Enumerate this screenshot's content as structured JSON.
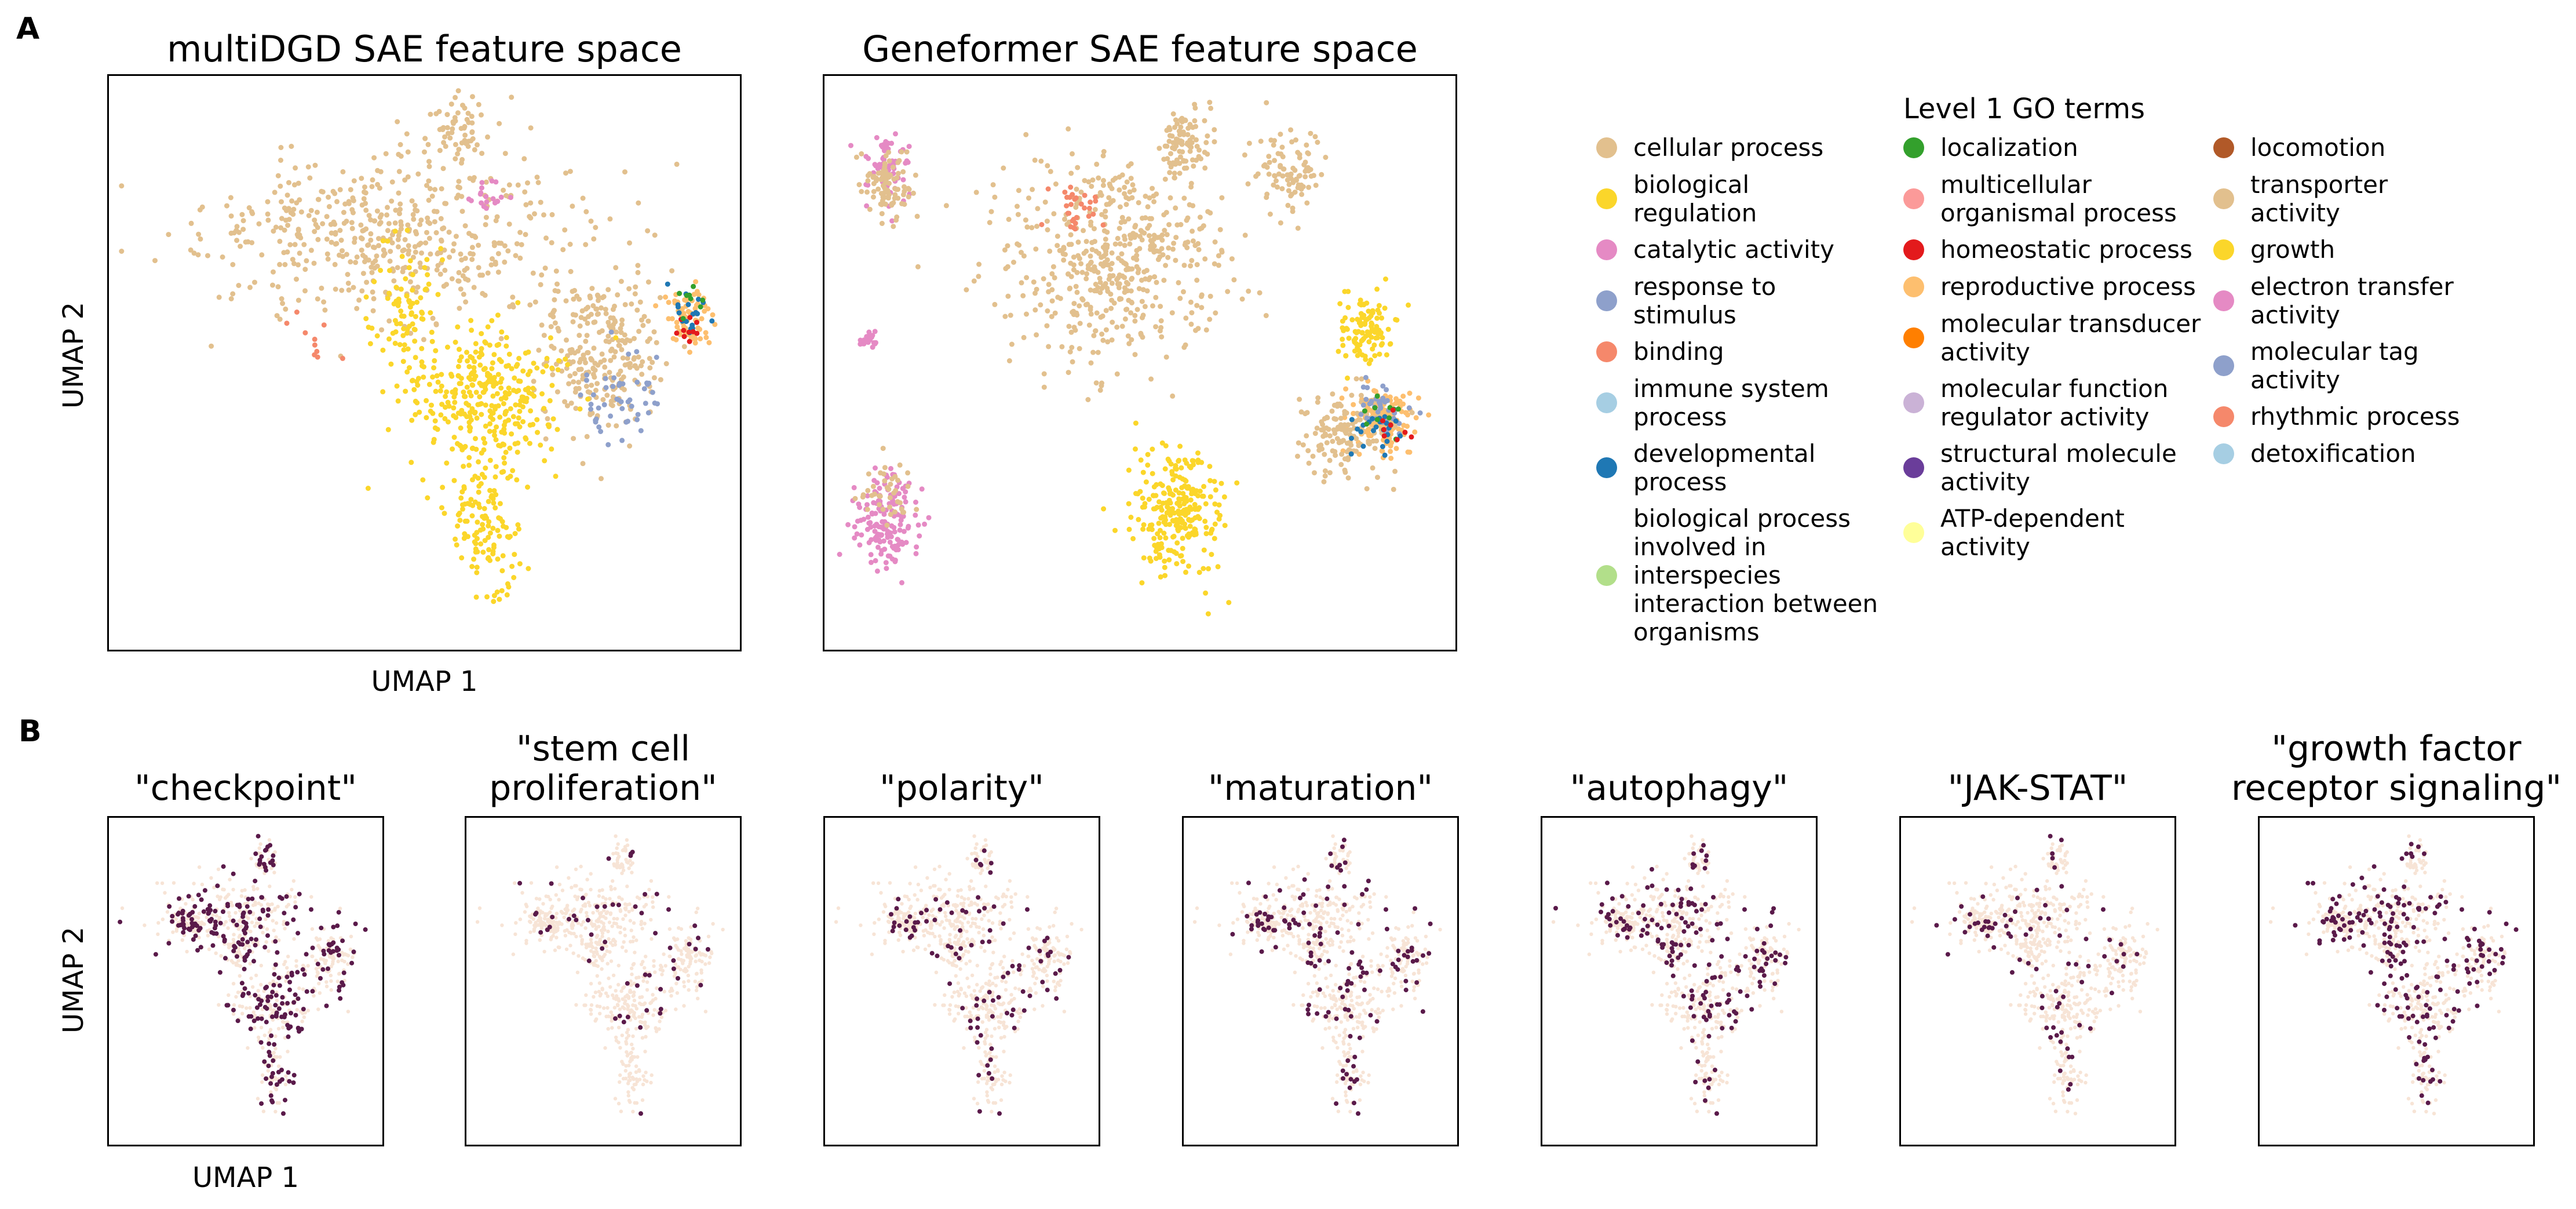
{
  "panel_labels": [
    "A",
    "B"
  ],
  "colors": {
    "cellular process": "#e2c08e",
    "biological regulation": "#fbd62a",
    "catalytic activity": "#e58ac4",
    "response to stimulus": "#8ea0cb",
    "binding": "#f5886b",
    "immune system process": "#a6cee3",
    "developmental process": "#1f78b4",
    "biological process involved in interspecies interaction between organisms": "#b2df8a",
    "localization": "#33a02c",
    "multicellular organismal process": "#fb9a99",
    "homeostatic process": "#e31a1c",
    "reproductive process": "#fdbf6f",
    "molecular transducer activity": "#ff7f00",
    "molecular function regulator activity": "#cab2d6",
    "structural molecule activity": "#6a3d9a",
    "ATP-dependent activity": "#ffff99",
    "locomotion": "#b15928",
    "transporter activity": "#e2c08e",
    "growth": "#fbd62a",
    "electron transfer activity": "#e58ac4",
    "molecular tag activity": "#8ea0cb",
    "rhythmic process": "#f5886b",
    "detoxification": "#a6cee3",
    "enrichment_high": "#5a1a4a",
    "enrichment_low": "#f7e4d6"
  },
  "legend": {
    "title": "Level 1 GO terms",
    "columns": [
      [
        {
          "label": "cellular process",
          "color": "#e2c08e"
        },
        {
          "label": "biological regulation",
          "color": "#fbd62a"
        },
        {
          "label": "catalytic activity",
          "color": "#e58ac4"
        },
        {
          "label": "response to stimulus",
          "color": "#8ea0cb"
        },
        {
          "label": "binding",
          "color": "#f5886b"
        },
        {
          "label": "immune system process",
          "color": "#a6cee3"
        },
        {
          "label": "developmental process",
          "color": "#1f78b4"
        },
        {
          "label": "biological process involved in interspecies interaction between organisms",
          "color": "#b2df8a"
        }
      ],
      [
        {
          "label": "localization",
          "color": "#33a02c"
        },
        {
          "label": "multicellular organismal process",
          "color": "#fb9a99"
        },
        {
          "label": "homeostatic process",
          "color": "#e31a1c"
        },
        {
          "label": "reproductive process",
          "color": "#fdbf6f"
        },
        {
          "label": "molecular transducer activity",
          "color": "#ff7f00"
        },
        {
          "label": "molecular function regulator activity",
          "color": "#cab2d6"
        },
        {
          "label": "structural molecule activity",
          "color": "#6a3d9a"
        },
        {
          "label": "ATP-dependent activity",
          "color": "#ffff99"
        }
      ],
      [
        {
          "label": "locomotion",
          "color": "#b15928"
        },
        {
          "label": "transporter activity",
          "color": "#e2c08e"
        },
        {
          "label": "growth",
          "color": "#fbd62a"
        },
        {
          "label": "electron transfer activity",
          "color": "#e58ac4"
        },
        {
          "label": "molecular tag activity",
          "color": "#8ea0cb"
        },
        {
          "label": "rhythmic process",
          "color": "#f5886b"
        },
        {
          "label": "detoxification",
          "color": "#a6cee3"
        }
      ]
    ]
  },
  "chart_data": [
    {
      "type": "scatter",
      "title": "multiDGD SAE feature space",
      "xlabel": "UMAP 1",
      "ylabel": "UMAP 2",
      "ticks": "none",
      "clusters": [
        {
          "name": "cellular process",
          "center": [
            0.45,
            0.28
          ],
          "spread": [
            0.3,
            0.14
          ],
          "n": 520
        },
        {
          "name": "cellular process",
          "center": [
            0.55,
            0.1
          ],
          "spread": [
            0.06,
            0.06
          ],
          "n": 60
        },
        {
          "name": "cellular process",
          "center": [
            0.78,
            0.48
          ],
          "spread": [
            0.1,
            0.14
          ],
          "n": 260
        },
        {
          "name": "biological regulation",
          "center": [
            0.6,
            0.56
          ],
          "spread": [
            0.12,
            0.12
          ],
          "n": 320
        },
        {
          "name": "biological regulation",
          "center": [
            0.6,
            0.78
          ],
          "spread": [
            0.06,
            0.12
          ],
          "n": 130
        },
        {
          "name": "biological regulation",
          "center": [
            0.47,
            0.42
          ],
          "spread": [
            0.05,
            0.12
          ],
          "n": 90
        },
        {
          "name": "reproductive process",
          "center": [
            0.92,
            0.42
          ],
          "spread": [
            0.04,
            0.05
          ],
          "n": 70
        },
        {
          "name": "response to stimulus",
          "center": [
            0.81,
            0.56
          ],
          "spread": [
            0.07,
            0.07
          ],
          "n": 50
        },
        {
          "name": "catalytic activity",
          "center": [
            0.6,
            0.21
          ],
          "spread": [
            0.03,
            0.03
          ],
          "n": 18
        },
        {
          "name": "developmental process",
          "center": [
            0.93,
            0.41
          ],
          "spread": [
            0.03,
            0.04
          ],
          "n": 18
        },
        {
          "name": "homeostatic process",
          "center": [
            0.92,
            0.44
          ],
          "spread": [
            0.03,
            0.04
          ],
          "n": 10
        },
        {
          "name": "localization",
          "center": [
            0.92,
            0.4
          ],
          "spread": [
            0.03,
            0.04
          ],
          "n": 8
        },
        {
          "name": "binding",
          "center": [
            0.33,
            0.46
          ],
          "spread": [
            0.04,
            0.04
          ],
          "n": 10
        }
      ]
    },
    {
      "type": "scatter",
      "title": "Geneformer SAE feature space",
      "xlabel": "",
      "ylabel": "",
      "ticks": "none",
      "clusters": [
        {
          "name": "catalytic activity",
          "center": [
            0.1,
            0.16
          ],
          "spread": [
            0.04,
            0.06
          ],
          "n": 60
        },
        {
          "name": "cellular process",
          "center": [
            0.1,
            0.19
          ],
          "spread": [
            0.04,
            0.06
          ],
          "n": 90
        },
        {
          "name": "catalytic activity",
          "center": [
            0.07,
            0.46
          ],
          "spread": [
            0.015,
            0.015
          ],
          "n": 22
        },
        {
          "name": "catalytic activity",
          "center": [
            0.1,
            0.78
          ],
          "spread": [
            0.05,
            0.08
          ],
          "n": 150
        },
        {
          "name": "cellular process",
          "center": [
            0.1,
            0.72
          ],
          "spread": [
            0.04,
            0.05
          ],
          "n": 40
        },
        {
          "name": "cellular process",
          "center": [
            0.45,
            0.32
          ],
          "spread": [
            0.18,
            0.18
          ],
          "n": 520
        },
        {
          "name": "cellular process",
          "center": [
            0.57,
            0.12
          ],
          "spread": [
            0.04,
            0.06
          ],
          "n": 90
        },
        {
          "name": "cellular process",
          "center": [
            0.74,
            0.17
          ],
          "spread": [
            0.05,
            0.07
          ],
          "n": 90
        },
        {
          "name": "biological regulation",
          "center": [
            0.56,
            0.76
          ],
          "spread": [
            0.07,
            0.11
          ],
          "n": 260
        },
        {
          "name": "biological regulation",
          "center": [
            0.86,
            0.44
          ],
          "spread": [
            0.04,
            0.06
          ],
          "n": 110
        },
        {
          "name": "reproductive process",
          "center": [
            0.88,
            0.6
          ],
          "spread": [
            0.05,
            0.06
          ],
          "n": 160
        },
        {
          "name": "cellular process",
          "center": [
            0.82,
            0.62
          ],
          "spread": [
            0.07,
            0.07
          ],
          "n": 140
        },
        {
          "name": "binding",
          "center": [
            0.4,
            0.23
          ],
          "spread": [
            0.05,
            0.04
          ],
          "n": 30
        },
        {
          "name": "response to stimulus",
          "center": [
            0.88,
            0.58
          ],
          "spread": [
            0.04,
            0.05
          ],
          "n": 40
        },
        {
          "name": "developmental process",
          "center": [
            0.88,
            0.61
          ],
          "spread": [
            0.04,
            0.05
          ],
          "n": 24
        },
        {
          "name": "localization",
          "center": [
            0.89,
            0.59
          ],
          "spread": [
            0.03,
            0.05
          ],
          "n": 10
        },
        {
          "name": "homeostatic process",
          "center": [
            0.9,
            0.62
          ],
          "spread": [
            0.03,
            0.04
          ],
          "n": 8
        }
      ]
    },
    {
      "type": "scatter",
      "title": "\"checkpoint\"",
      "xlabel": "UMAP 1",
      "ylabel": "UMAP 2",
      "enrichment": 0.35
    },
    {
      "type": "scatter",
      "title": "\"stem cell proliferation\"",
      "xlabel": "",
      "ylabel": "",
      "enrichment": 0.08
    },
    {
      "type": "scatter",
      "title": "\"polarity\"",
      "xlabel": "",
      "ylabel": "",
      "enrichment": 0.14
    },
    {
      "type": "scatter",
      "title": "\"maturation\"",
      "xlabel": "",
      "ylabel": "",
      "enrichment": 0.18
    },
    {
      "type": "scatter",
      "title": "\"autophagy\"",
      "xlabel": "",
      "ylabel": "",
      "enrichment": 0.22
    },
    {
      "type": "scatter",
      "title": "\"JAK-STAT\"",
      "xlabel": "",
      "ylabel": "",
      "enrichment": 0.1
    },
    {
      "type": "scatter",
      "title": "\"growth factor receptor signaling\"",
      "xlabel": "",
      "ylabel": "",
      "enrichment": 0.28
    }
  ]
}
